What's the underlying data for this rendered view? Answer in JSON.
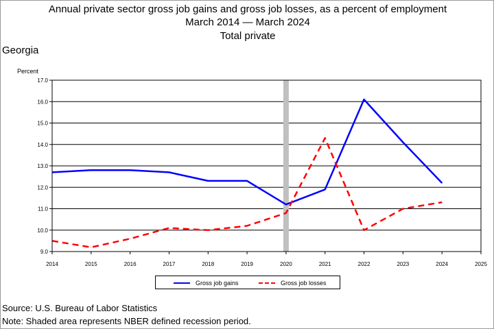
{
  "title": {
    "line1": "Annual private sector gross job gains and gross job losses, as a percent of employment",
    "line2": "March 2014 — March 2024",
    "line3": "Total private"
  },
  "region": "Georgia",
  "footer": {
    "source": "Source: U.S. Bureau of Labor Statistics",
    "note": "Note: Shaded area represents NBER defined recession period."
  },
  "chart_data": {
    "type": "line",
    "ylabel": "Percent",
    "xlim": [
      2014,
      2025
    ],
    "ylim": [
      9.0,
      17.0
    ],
    "x_ticks": [
      "2014",
      "2015",
      "2016",
      "2017",
      "2018",
      "2019",
      "2020",
      "2021",
      "2022",
      "2023",
      "2024",
      "2025"
    ],
    "y_ticks": [
      "9.0",
      "10.0",
      "11.0",
      "12.0",
      "13.0",
      "14.0",
      "15.0",
      "16.0",
      "17.0"
    ],
    "grid": "horizontal",
    "recession": {
      "x": 2020,
      "color": "#c0c0c0"
    },
    "legend_position": "bottom",
    "series": [
      {
        "name": "Gross job gains",
        "color": "#0000ff",
        "style": "solid",
        "x": [
          2014,
          2015,
          2016,
          2017,
          2018,
          2019,
          2020,
          2021,
          2022,
          2023,
          2024
        ],
        "values": [
          12.7,
          12.8,
          12.8,
          12.7,
          12.3,
          12.3,
          11.2,
          11.9,
          16.1,
          14.1,
          12.2
        ]
      },
      {
        "name": "Gross job losses",
        "color": "#ff0000",
        "style": "dashed",
        "x": [
          2014,
          2015,
          2016,
          2017,
          2018,
          2019,
          2020,
          2021,
          2022,
          2023,
          2024
        ],
        "values": [
          9.5,
          9.2,
          9.6,
          10.1,
          10.0,
          10.2,
          10.8,
          14.3,
          10.0,
          11.0,
          11.3
        ]
      }
    ]
  }
}
